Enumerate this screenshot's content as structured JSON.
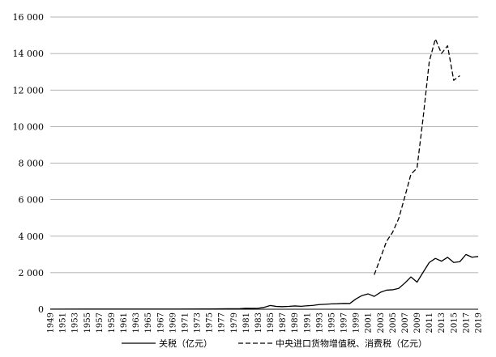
{
  "chart_data": {
    "type": "line",
    "title": "",
    "xlabel": "",
    "ylabel": "",
    "xlim": [
      1949,
      2019
    ],
    "ylim": [
      0,
      16000
    ],
    "grid": "horizontal",
    "legend_position": "bottom",
    "y_ticks": [
      0,
      2000,
      4000,
      6000,
      8000,
      10000,
      12000,
      14000,
      16000
    ],
    "y_tick_labels": [
      "0",
      "2 000",
      "4 000",
      "6 000",
      "8 000",
      "10 000",
      "12 000",
      "14 000",
      "16 000"
    ],
    "x_tick_labels": [
      "1949",
      "1951",
      "1953",
      "1955",
      "1957",
      "1959",
      "1961",
      "1963",
      "1965",
      "1967",
      "1969",
      "1971",
      "1973",
      "1975",
      "1977",
      "1979",
      "1981",
      "1983",
      "1985",
      "1987",
      "1989",
      "1991",
      "1993",
      "1995",
      "1997",
      "1999",
      "2001",
      "2003",
      "2005",
      "2007",
      "2009",
      "2011",
      "2013",
      "2015",
      "2017",
      "2019"
    ],
    "series": [
      {
        "name": "关税（亿元）",
        "style": "solid",
        "color": "#000000",
        "points": [
          [
            1949,
            5
          ],
          [
            1955,
            8
          ],
          [
            1960,
            10
          ],
          [
            1965,
            10
          ],
          [
            1970,
            10
          ],
          [
            1975,
            14
          ],
          [
            1978,
            29
          ],
          [
            1980,
            34
          ],
          [
            1981,
            54
          ],
          [
            1982,
            47
          ],
          [
            1983,
            54
          ],
          [
            1984,
            103
          ],
          [
            1985,
            205
          ],
          [
            1986,
            152
          ],
          [
            1987,
            142
          ],
          [
            1988,
            155
          ],
          [
            1989,
            181
          ],
          [
            1990,
            159
          ],
          [
            1991,
            187
          ],
          [
            1992,
            212
          ],
          [
            1993,
            256
          ],
          [
            1994,
            272
          ],
          [
            1995,
            292
          ],
          [
            1996,
            302
          ],
          [
            1997,
            319
          ],
          [
            1998,
            313
          ],
          [
            1999,
            562
          ],
          [
            2000,
            750
          ],
          [
            2001,
            840
          ],
          [
            2002,
            704
          ],
          [
            2003,
            923
          ],
          [
            2004,
            1044
          ],
          [
            2005,
            1066
          ],
          [
            2006,
            1142
          ],
          [
            2007,
            1432
          ],
          [
            2008,
            1770
          ],
          [
            2009,
            1484
          ],
          [
            2010,
            2028
          ],
          [
            2011,
            2559
          ],
          [
            2012,
            2784
          ],
          [
            2013,
            2631
          ],
          [
            2014,
            2843
          ],
          [
            2015,
            2561
          ],
          [
            2016,
            2603
          ],
          [
            2017,
            2998
          ],
          [
            2018,
            2848
          ],
          [
            2019,
            2889
          ]
        ]
      },
      {
        "name": "中央进口货物增值税、消费税（亿元）",
        "style": "dashed",
        "color": "#000000",
        "points": [
          [
            2002,
            1886
          ],
          [
            2003,
            2788
          ],
          [
            2004,
            3712
          ],
          [
            2005,
            4212
          ],
          [
            2006,
            4962
          ],
          [
            2007,
            6153
          ],
          [
            2008,
            7391
          ],
          [
            2009,
            7730
          ],
          [
            2010,
            10491
          ],
          [
            2011,
            13560
          ],
          [
            2012,
            14802
          ],
          [
            2013,
            14004
          ],
          [
            2014,
            14425
          ],
          [
            2015,
            12533
          ],
          [
            2016,
            12785
          ]
        ]
      }
    ]
  }
}
